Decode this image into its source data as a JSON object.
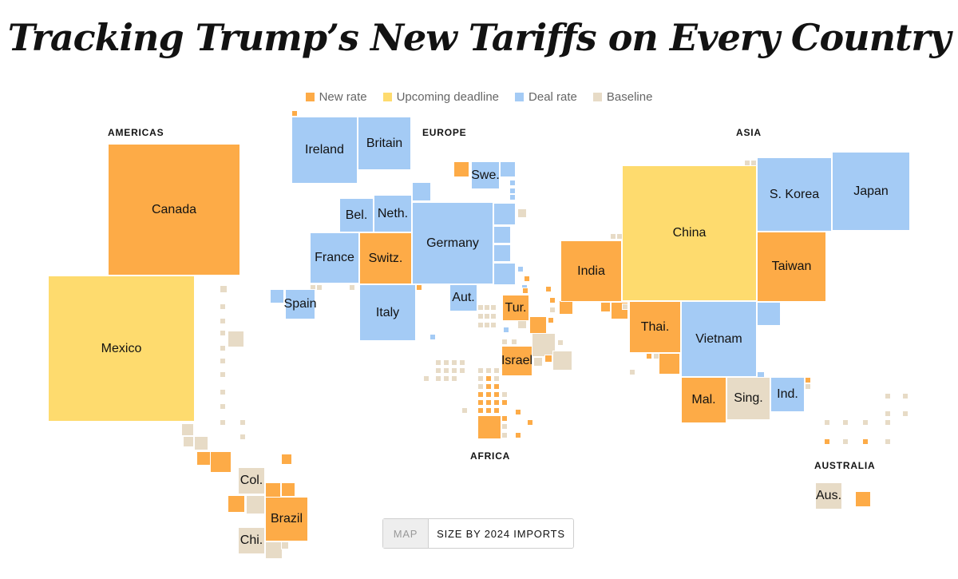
{
  "title": "Tracking Trump’s New Tariffs on Every Country",
  "colors": {
    "new": "#fdab47",
    "upcoming": "#fedb6e",
    "deal": "#a4cbf5",
    "baseline": "#e7dbc6"
  },
  "legend": [
    {
      "key": "new",
      "label": "New rate"
    },
    {
      "key": "upcoming",
      "label": "Upcoming deadline"
    },
    {
      "key": "deal",
      "label": "Deal rate"
    },
    {
      "key": "baseline",
      "label": "Baseline"
    }
  ],
  "regions": {
    "americas": "AMERICAS",
    "europe": "EUROPE",
    "asia": "ASIA",
    "africa": "AFRICA",
    "australia": "AUSTRALIA"
  },
  "countries": {
    "canada": {
      "label": "Canada",
      "status": "new"
    },
    "mexico": {
      "label": "Mexico",
      "status": "upcoming"
    },
    "colombia": {
      "label": "Col.",
      "status": "baseline"
    },
    "brazil": {
      "label": "Brazil",
      "status": "new"
    },
    "chile": {
      "label": "Chi.",
      "status": "baseline"
    },
    "ireland": {
      "label": "Ireland",
      "status": "deal"
    },
    "britain": {
      "label": "Britain",
      "status": "deal"
    },
    "sweden": {
      "label": "Swe.",
      "status": "deal"
    },
    "belgium": {
      "label": "Bel.",
      "status": "deal"
    },
    "netherlands": {
      "label": "Neth.",
      "status": "deal"
    },
    "germany": {
      "label": "Germany",
      "status": "deal"
    },
    "france": {
      "label": "France",
      "status": "deal"
    },
    "switzerland": {
      "label": "Switz.",
      "status": "new"
    },
    "spain": {
      "label": "Spain",
      "status": "deal"
    },
    "italy": {
      "label": "Italy",
      "status": "deal"
    },
    "austria": {
      "label": "Aut.",
      "status": "deal"
    },
    "turkey": {
      "label": "Tur.",
      "status": "new"
    },
    "israel": {
      "label": "Israel",
      "status": "new"
    },
    "india": {
      "label": "India",
      "status": "new"
    },
    "china": {
      "label": "China",
      "status": "upcoming"
    },
    "south_korea": {
      "label": "S. Korea",
      "status": "deal"
    },
    "japan": {
      "label": "Japan",
      "status": "deal"
    },
    "taiwan": {
      "label": "Taiwan",
      "status": "new"
    },
    "thailand": {
      "label": "Thai.",
      "status": "new"
    },
    "vietnam": {
      "label": "Vietnam",
      "status": "deal"
    },
    "malaysia": {
      "label": "Mal.",
      "status": "new"
    },
    "singapore": {
      "label": "Sing.",
      "status": "baseline"
    },
    "indonesia": {
      "label": "Ind.",
      "status": "deal"
    },
    "australia": {
      "label": "Aus.",
      "status": "baseline"
    }
  },
  "toggle": {
    "map_label": "MAP",
    "size_label": "SIZE BY 2024 IMPORTS"
  }
}
